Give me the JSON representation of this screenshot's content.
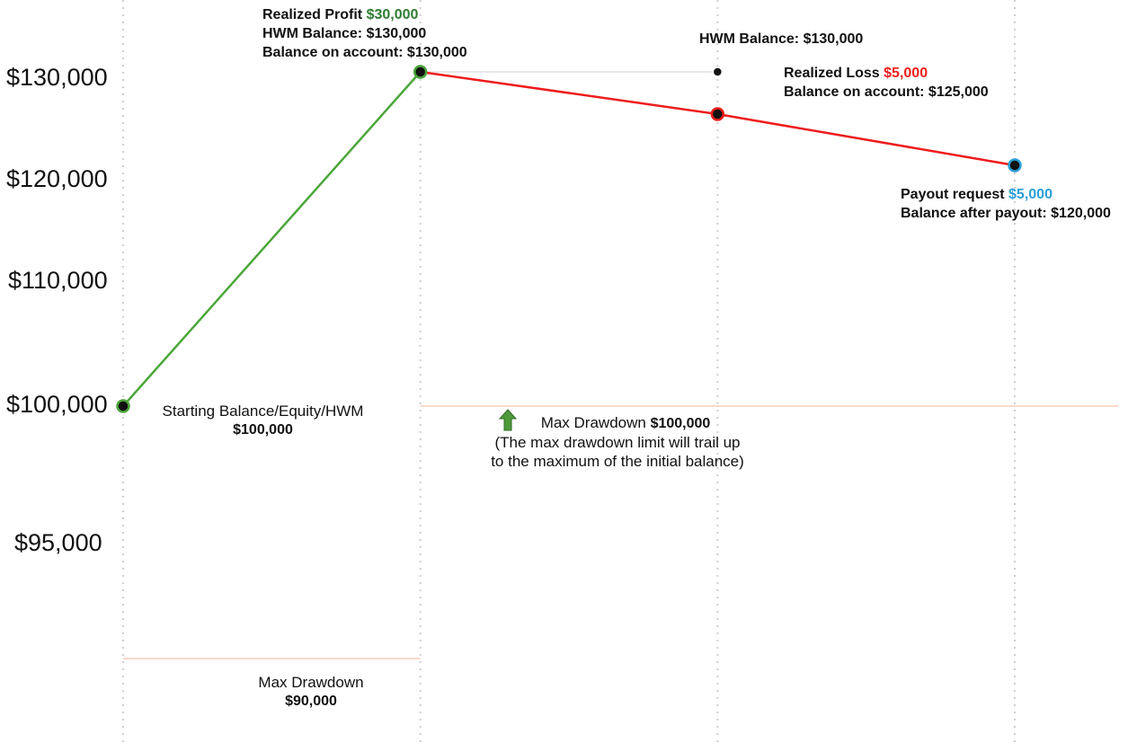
{
  "chart_data": {
    "type": "line",
    "y_ticks": [
      "$130,000",
      "$120,000",
      "$110,000",
      "$100,000",
      "$95,000"
    ],
    "x_gridlines": 4,
    "grid": "vertical dotted",
    "colors": {
      "gain": "#4ca63a",
      "loss": "#ee1c1c",
      "payout": "#2a9fd6",
      "profit_text": "#2e7d32",
      "loss_text": "#ee1c1c",
      "payout_text": "#2a9fd6",
      "hwm_line": "#e8e8e8",
      "drawdown_line": "#f9d9cc",
      "arrow": "#4e9a3a"
    },
    "points": [
      {
        "name": "start",
        "x": 0,
        "y": 100000
      },
      {
        "name": "profit",
        "x": 1,
        "y": 130000
      },
      {
        "name": "loss",
        "x": 2,
        "y": 125000
      },
      {
        "name": "payout",
        "x": 3,
        "y": 120000
      }
    ],
    "hwm_marker": {
      "x": 2,
      "y": 130000
    },
    "segments": [
      {
        "from": 0,
        "to": 1,
        "color": "gain"
      },
      {
        "from": 1,
        "to": 3,
        "color": "loss"
      }
    ],
    "drawdown_levels": [
      {
        "x_start": 0,
        "x_end": 1,
        "value": 90000
      },
      {
        "x_start": 1,
        "x_end": 3.35,
        "value": 100000
      }
    ]
  },
  "annotations": {
    "profit": {
      "label": "Realized Profit ",
      "value": "$30,000",
      "hwm": "HWM Balance: $130,000",
      "balance": "Balance on account: $130,000"
    },
    "hwm": {
      "text": "HWM Balance: $130,000"
    },
    "loss": {
      "label": "Realized Loss ",
      "value": "$5,000",
      "balance": "Balance on account: $125,000"
    },
    "payout": {
      "label": "Payout request ",
      "value": "$5,000",
      "balance": "Balance after payout: $120,000"
    },
    "start": {
      "label": "Starting Balance/Equity/HWM",
      "value": "$100,000"
    },
    "dd100": {
      "label": "Max Drawdown ",
      "value": "$100,000",
      "note1": "(The max drawdown limit will trail up",
      "note2": "to the maximum of the initial balance)"
    },
    "dd90": {
      "label": "Max Drawdown",
      "value": "$90,000"
    }
  }
}
